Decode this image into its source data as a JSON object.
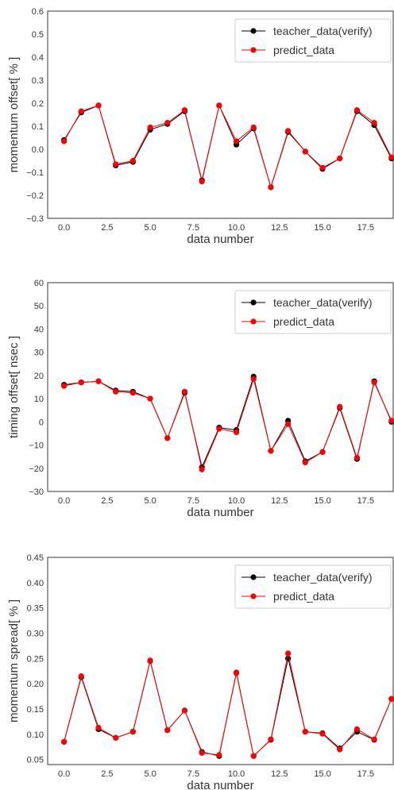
{
  "chart_data": [
    {
      "type": "line",
      "x": [
        0,
        1,
        2,
        3,
        4,
        5,
        6,
        7,
        8,
        9,
        10,
        11,
        12,
        13,
        14,
        15,
        16,
        17,
        18,
        19
      ],
      "xlabel": "data number",
      "ylabel": "momentum offset[ % ]",
      "xlim": [
        -0.95,
        19.1
      ],
      "ylim": [
        -0.3,
        0.6
      ],
      "xticks": [
        0.0,
        2.5,
        5.0,
        7.5,
        10.0,
        12.5,
        15.0,
        17.5
      ],
      "yticks": [
        -0.3,
        -0.2,
        -0.1,
        0.0,
        0.1,
        0.2,
        0.3,
        0.4,
        0.5,
        0.6
      ],
      "tick_decimals": 1,
      "grid": false,
      "legend_position": "top-right",
      "series": [
        {
          "name": "teacher_data(verify)",
          "color": "#000000",
          "values": [
            0.04,
            0.16,
            0.19,
            -0.07,
            -0.055,
            0.085,
            0.11,
            0.165,
            -0.135,
            0.19,
            0.02,
            0.09,
            -0.165,
            0.075,
            -0.01,
            -0.085,
            -0.04,
            0.165,
            0.105,
            -0.04
          ]
        },
        {
          "name": "predict_data",
          "color": "#ff0000",
          "values": [
            0.035,
            0.165,
            0.19,
            -0.065,
            -0.05,
            0.095,
            0.115,
            0.17,
            -0.14,
            0.19,
            0.035,
            0.095,
            -0.165,
            0.08,
            -0.01,
            -0.08,
            -0.04,
            0.17,
            0.115,
            -0.035
          ]
        }
      ]
    },
    {
      "type": "line",
      "x": [
        0,
        1,
        2,
        3,
        4,
        5,
        6,
        7,
        8,
        9,
        10,
        11,
        12,
        13,
        14,
        15,
        16,
        17,
        18,
        19
      ],
      "xlabel": "data number",
      "ylabel": "timing offset[ nsec ]",
      "xlim": [
        -0.95,
        19.1
      ],
      "ylim": [
        -30,
        60
      ],
      "xticks": [
        0.0,
        2.5,
        5.0,
        7.5,
        10.0,
        12.5,
        15.0,
        17.5
      ],
      "yticks": [
        -30,
        -20,
        -10,
        0,
        10,
        20,
        30,
        40,
        50,
        60
      ],
      "tick_decimals": 0,
      "grid": false,
      "legend_position": "top-right",
      "series": [
        {
          "name": "teacher_data(verify)",
          "color": "#000000",
          "values": [
            16,
            17,
            17.5,
            13.5,
            13,
            10,
            -7,
            12.5,
            -19.5,
            -2.5,
            -3.5,
            19.5,
            -12.5,
            0.5,
            -17,
            -13,
            6,
            -16,
            17.5,
            0
          ]
        },
        {
          "name": "predict_data",
          "color": "#ff0000",
          "values": [
            15.5,
            17,
            17.5,
            13,
            12.5,
            10,
            -7,
            13,
            -20.5,
            -3,
            -4.5,
            18.5,
            -12.5,
            -1,
            -17.5,
            -13,
            6.5,
            -15.5,
            17,
            0.5
          ]
        }
      ]
    },
    {
      "type": "line",
      "x": [
        0,
        1,
        2,
        3,
        4,
        5,
        6,
        7,
        8,
        9,
        10,
        11,
        12,
        13,
        14,
        15,
        16,
        17,
        18,
        19
      ],
      "xlabel": "data number",
      "ylabel": "momentum spread[ % ]",
      "xlim": [
        -0.95,
        19.1
      ],
      "ylim": [
        0.04,
        0.45
      ],
      "xticks": [
        0.0,
        2.5,
        5.0,
        7.5,
        10.0,
        12.5,
        15.0,
        17.5
      ],
      "yticks": [
        0.05,
        0.1,
        0.15,
        0.2,
        0.25,
        0.3,
        0.35,
        0.4,
        0.45
      ],
      "tick_decimals": 2,
      "grid": false,
      "legend_position": "top-right",
      "series": [
        {
          "name": "teacher_data(verify)",
          "color": "#000000",
          "values": [
            0.085,
            0.213,
            0.11,
            0.093,
            0.105,
            0.245,
            0.108,
            0.147,
            0.065,
            0.057,
            0.222,
            0.057,
            0.089,
            0.25,
            0.105,
            0.102,
            0.072,
            0.105,
            0.089,
            0.17
          ]
        },
        {
          "name": "predict_data",
          "color": "#ff0000",
          "values": [
            0.085,
            0.215,
            0.113,
            0.093,
            0.105,
            0.246,
            0.108,
            0.147,
            0.063,
            0.059,
            0.221,
            0.057,
            0.09,
            0.26,
            0.105,
            0.101,
            0.07,
            0.11,
            0.09,
            0.17
          ]
        }
      ]
    }
  ]
}
